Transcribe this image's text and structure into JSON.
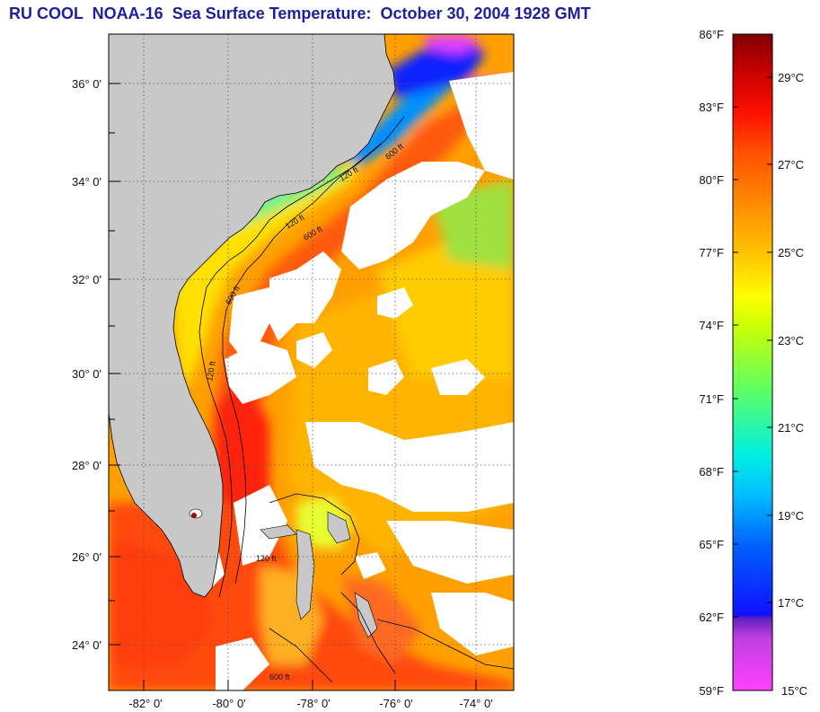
{
  "title": "RU COOL  NOAA-16  Sea Surface Temperature:  October 30, 2004 1928 GMT",
  "map": {
    "lat_range": [
      23.0,
      37.2
    ],
    "lon_range": [
      -83.0,
      -73.0
    ],
    "lat_ticks": [
      "36° 0'",
      "34° 0'",
      "32° 0'",
      "30° 0'",
      "28° 0'",
      "26° 0'",
      "24° 0'"
    ],
    "lon_ticks": [
      "-82° 0'",
      "-80° 0'",
      "-78° 0'",
      "-76° 0'",
      "-74° 0'"
    ],
    "contour_labels": [
      "600 ft",
      "120 ft",
      "600 ft",
      "120 ft",
      "600 ft",
      "120 ft",
      "600 ft",
      "120 ft"
    ],
    "colors": {
      "land": "#c8c8c8",
      "cloud": "#ffffff",
      "frame": "#000000"
    }
  },
  "colorbar": {
    "fahrenheit_labels": [
      "86°F",
      "83°F",
      "80°F",
      "77°F",
      "74°F",
      "71°F",
      "68°F",
      "65°F",
      "62°F",
      "59°F"
    ],
    "celsius_labels": [
      "29°C",
      "27°C",
      "25°C",
      "23°C",
      "21°C",
      "19°C",
      "17°C",
      "15°C"
    ],
    "colors": [
      "#ff40ff",
      "#c040ff",
      "#4020ff",
      "#0040ff",
      "#0090ff",
      "#00d8ff",
      "#00ffc0",
      "#60ff40",
      "#c8ff00",
      "#ffff00",
      "#ffc800",
      "#ff8c00",
      "#ff5000",
      "#ff1000",
      "#d00000",
      "#800000"
    ]
  }
}
